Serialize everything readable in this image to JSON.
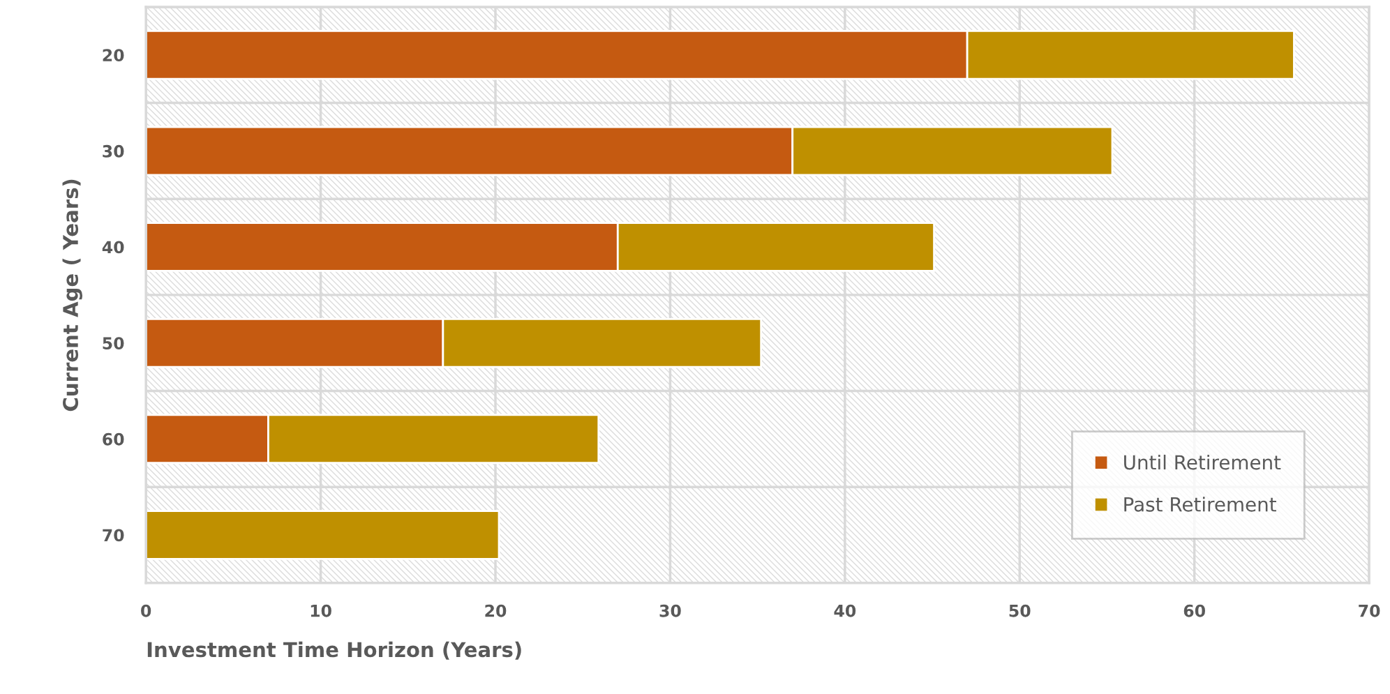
{
  "chart_data": {
    "type": "bar",
    "orientation": "horizontal",
    "stacked": true,
    "xlabel": "Investment Time Horizon (Years)",
    "ylabel": "Current Age ( Years)",
    "categories": [
      "20",
      "30",
      "40",
      "50",
      "60",
      "70"
    ],
    "series": [
      {
        "name": "Until Retirement",
        "color": "#c55a11",
        "values": [
          47,
          37,
          27,
          17,
          7,
          0
        ]
      },
      {
        "name": "Past Retirement",
        "color": "#bf9000",
        "values": [
          18.7,
          18.3,
          18.1,
          18.2,
          18.9,
          20.2
        ]
      }
    ],
    "xlim": [
      0,
      70
    ],
    "xticks": [
      0,
      10,
      20,
      30,
      40,
      50,
      60,
      70
    ],
    "grid": true,
    "legend": "bottom right"
  }
}
